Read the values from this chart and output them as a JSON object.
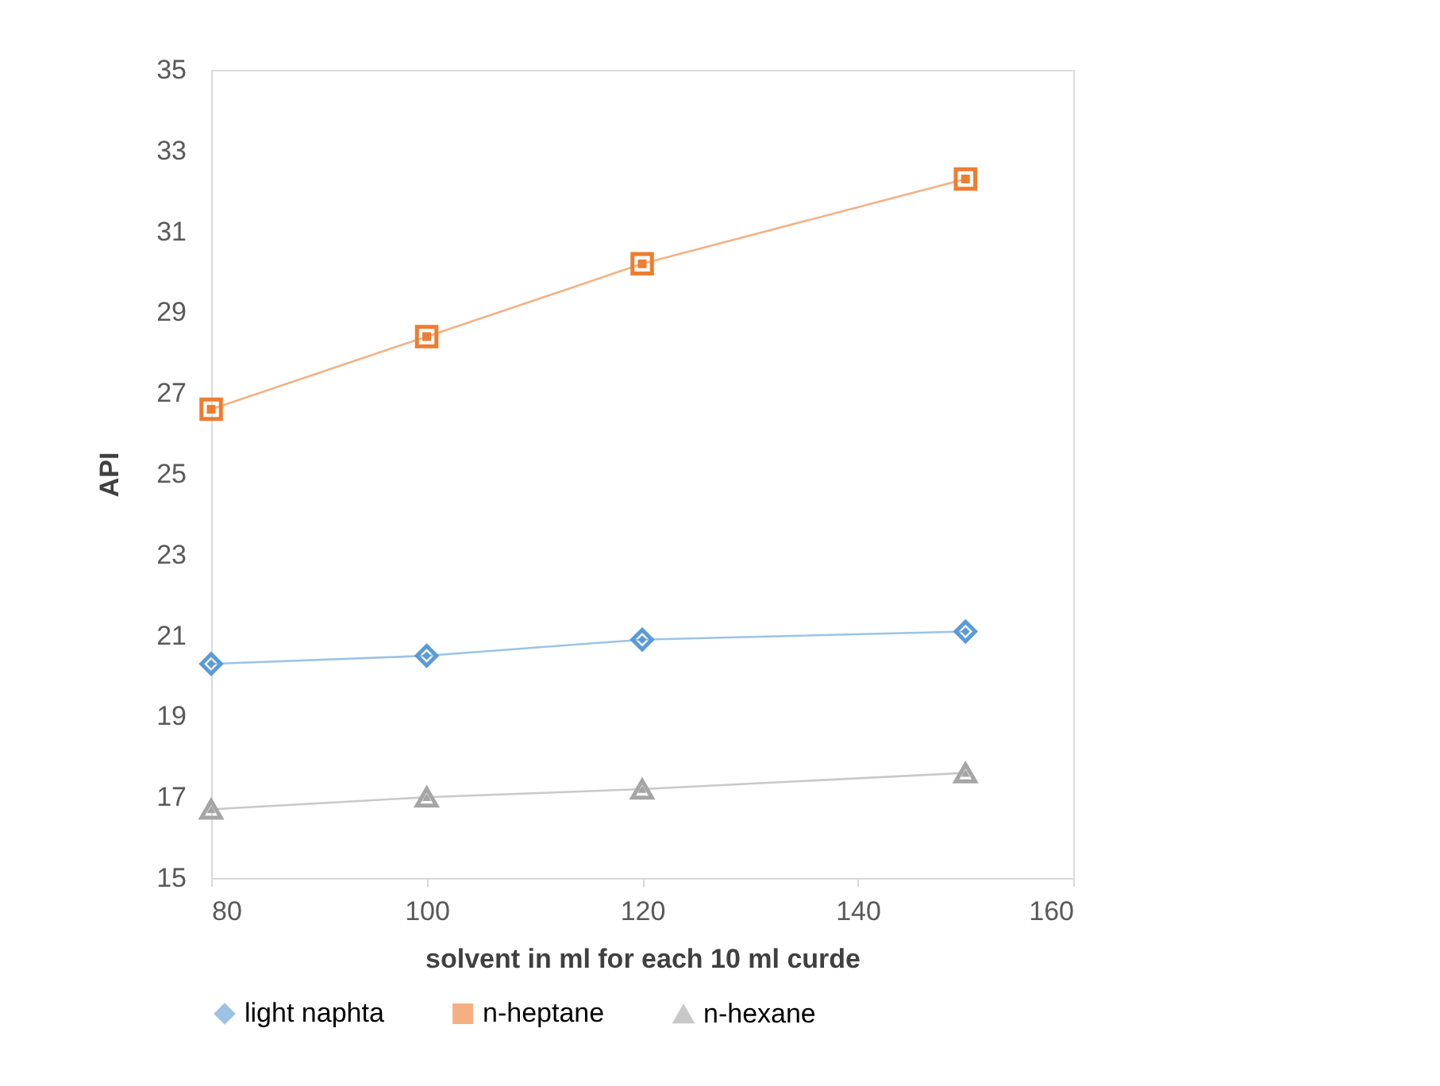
{
  "chart_data": {
    "type": "line",
    "xlabel": "solvent in ml for each 10 ml curde",
    "ylabel": "API",
    "x": [
      80,
      100,
      120,
      150
    ],
    "series": [
      {
        "name": "light naphta",
        "color": "#5b9bd5",
        "marker": "diamond",
        "values": [
          20.3,
          20.5,
          20.9,
          21.1
        ]
      },
      {
        "name": "n-heptane",
        "color": "#ed7d31",
        "marker": "square",
        "values": [
          26.6,
          28.4,
          30.2,
          32.3
        ]
      },
      {
        "name": "n-hexane",
        "color": "#a5a5a5",
        "marker": "triangle",
        "values": [
          16.7,
          17.0,
          17.2,
          17.6
        ]
      }
    ],
    "xlim": [
      80,
      160
    ],
    "xticks": [
      80,
      100,
      120,
      140,
      160
    ],
    "ylim": [
      15,
      35
    ],
    "yticks": [
      15,
      17,
      19,
      21,
      23,
      25,
      27,
      29,
      31,
      33,
      35
    ],
    "grid": false,
    "legend": "bottom",
    "line_style": "solid"
  }
}
